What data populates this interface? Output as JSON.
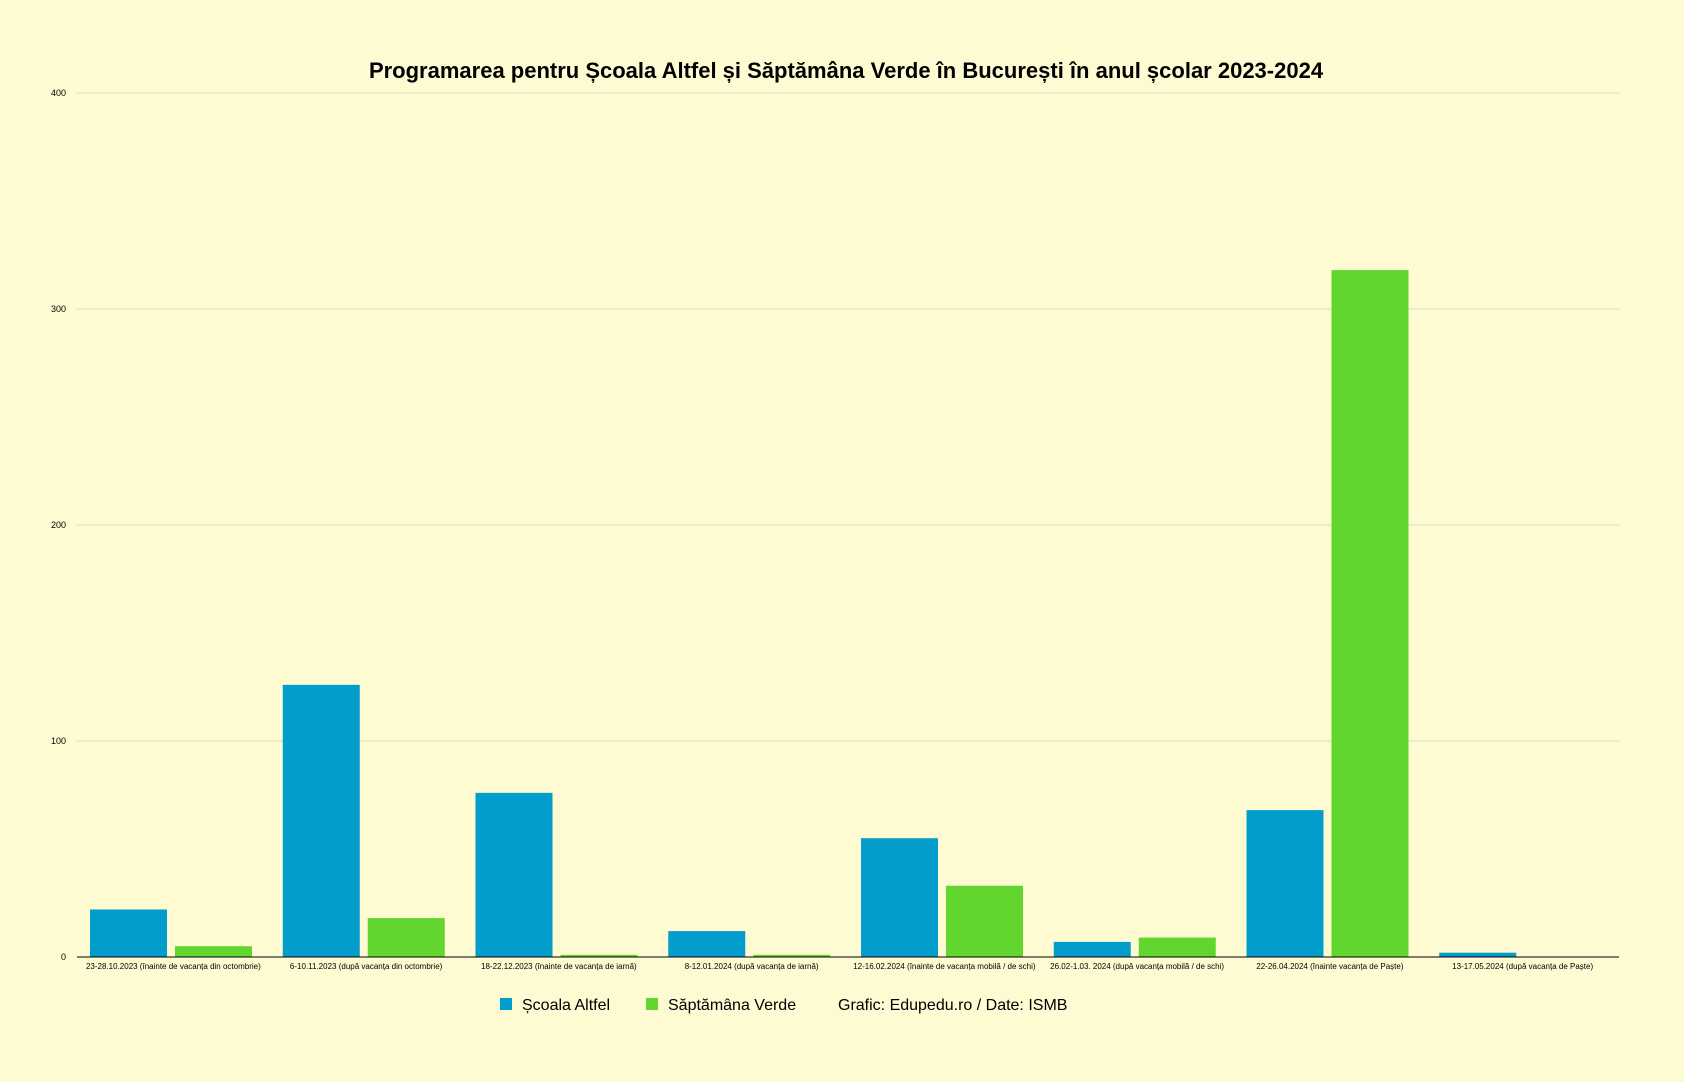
{
  "chart_data": {
    "type": "bar",
    "title": "Programarea pentru Școala Altfel și Săptămâna Verde în București în anul școlar 2023-2024",
    "xlabel": "",
    "ylabel": "",
    "ylim": [
      0,
      400
    ],
    "yticks": [
      "0",
      "100",
      "200",
      "300",
      "400"
    ],
    "grid": true,
    "legend_position": "bottom",
    "categories": [
      "23-28.10.2023 (înainte de vacanța din octombrie)",
      "6-10.11.2023 (după vacanța din octombrie)",
      "18-22.12.2023 (înainte de vacanța de iarnă)",
      "8-12.01.2024 (după vacanța de iarnă)",
      "12-16.02.2024 (înainte de vacanța mobilă / de schi)",
      "26.02-1.03. 2024 (după vacanța mobilă / de schi)",
      "22-26.04.2024 (înainte vacanța de Paște)",
      "13-17.05.2024 (după vacanța de Paște)"
    ],
    "series": [
      {
        "name": "Școala Altfel",
        "color": "#039dcc",
        "values": [
          22,
          126,
          76,
          12,
          55,
          7,
          68,
          2
        ]
      },
      {
        "name": "Săptămâna Verde",
        "color": "#62d62e",
        "values": [
          5,
          18,
          1,
          1,
          33,
          9,
          318,
          0
        ]
      }
    ],
    "credit": "Grafic: Edupedu.ro / Date: ISMB"
  }
}
